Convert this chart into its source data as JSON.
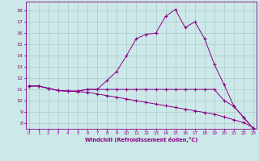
{
  "xlabel": "Windchill (Refroidissement éolien,°C)",
  "bg_color": "#cce8e8",
  "grid_color": "#aacccc",
  "line_color": "#880088",
  "x_ticks": [
    0,
    1,
    2,
    3,
    4,
    5,
    6,
    7,
    8,
    9,
    10,
    11,
    12,
    13,
    14,
    15,
    16,
    17,
    18,
    19,
    20,
    21,
    22,
    23
  ],
  "y_ticks": [
    8,
    9,
    10,
    11,
    12,
    13,
    14,
    15,
    16,
    17,
    18
  ],
  "xlim": [
    -0.3,
    23.3
  ],
  "ylim": [
    7.5,
    18.8
  ],
  "line1_x": [
    0,
    1,
    2,
    3,
    4,
    5,
    6,
    7,
    8,
    9,
    10,
    11,
    12,
    13,
    14,
    15,
    16,
    17,
    18,
    19,
    20,
    21,
    22,
    23
  ],
  "line1_y": [
    11.3,
    11.3,
    11.1,
    10.9,
    10.85,
    10.85,
    11.0,
    11.0,
    11.8,
    12.6,
    14.0,
    15.5,
    15.9,
    16.0,
    17.5,
    18.1,
    16.5,
    17.0,
    15.5,
    13.2,
    11.4,
    9.5,
    8.5,
    7.5
  ],
  "line2_x": [
    0,
    1,
    2,
    3,
    4,
    5,
    6,
    7,
    8,
    9,
    10,
    11,
    12,
    13,
    14,
    15,
    16,
    17,
    18,
    19,
    20,
    21,
    22,
    23
  ],
  "line2_y": [
    11.3,
    11.3,
    11.1,
    10.9,
    10.85,
    10.85,
    11.0,
    11.0,
    11.0,
    11.0,
    11.0,
    11.0,
    11.0,
    11.0,
    11.0,
    11.0,
    11.0,
    11.0,
    11.0,
    11.0,
    10.0,
    9.5,
    8.5,
    7.5
  ],
  "line3_x": [
    0,
    1,
    2,
    3,
    4,
    5,
    6,
    7,
    8,
    9,
    10,
    11,
    12,
    13,
    14,
    15,
    16,
    17,
    18,
    19,
    20,
    21,
    22,
    23
  ],
  "line3_y": [
    11.3,
    11.3,
    11.1,
    10.9,
    10.85,
    10.8,
    10.75,
    10.6,
    10.45,
    10.3,
    10.15,
    10.0,
    9.85,
    9.7,
    9.55,
    9.4,
    9.25,
    9.1,
    8.95,
    8.8,
    8.55,
    8.3,
    8.05,
    7.6
  ]
}
